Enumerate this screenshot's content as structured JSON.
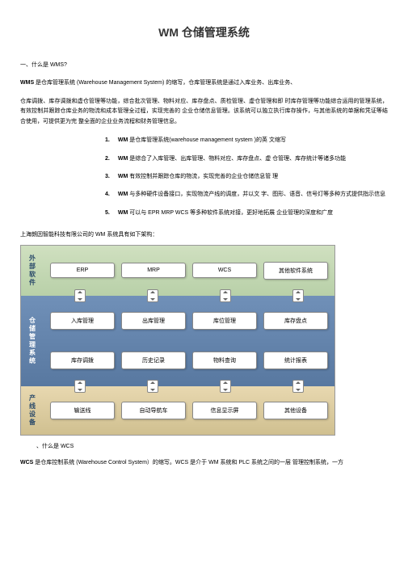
{
  "title": "WM 仓储管理系统",
  "section1": {
    "header": "一、什么是 WMS?",
    "p1_prefix": "WMS",
    "p1_text": " 是仓库管理系统 (Warehouse Management System) 的缩写，仓库管理系统是通过入库业务、出库业务、",
    "p2": "仓库调拨、库存调拨和虚仓管理等功能，综合批次管理、物料对应、库存盘点、质检管理、虚仓管理和即 时库存管理等功能综合运用的管理系统，有效控制并跟踪仓库业务的物流和成本管理全过程，实现完善的 企业仓储信息管理。该系统可以独立执行库存操作，与其他系统的单据和凭证等结合使用，可提供更为完 整全面的企业业务流程和财务管理信息。"
  },
  "list": [
    {
      "num": "1.",
      "label_bold": "WM",
      "text": " 是仓库管理系统(warehouse management system )的英 文缩写"
    },
    {
      "num": "2.",
      "label_bold": "WM",
      "text": " 是综合了入库管理、出库管理、物料对应、库存盘点、虚 仓管理、库存统计等诸多功能"
    },
    {
      "num": "3.",
      "label_bold": "WM",
      "text": " 有效控制并跟踪仓库的物流，实现完善的企业仓储信息管 理"
    },
    {
      "num": "4.",
      "label_bold": "WM",
      "text": " 与多种硬件设备接口，实现物流产线的调度，并以文 字、图形、语音、信号灯等多种方式提供指示信息"
    },
    {
      "num": "5.",
      "label_bold": "WM",
      "text": " 可以与 EPR MRP WCS 等多种软件系统对接，更好地拓展 企业管理的深度和广度"
    }
  ],
  "arch_intro": "上海朗因智能科技有限公司的 WM 系统具有如下架构：",
  "diagram": {
    "vlabels": {
      "ext": "外部软件",
      "wm": "仓储管理系统",
      "hw": "产线设备"
    },
    "row_ext": [
      "ERP",
      "MRP",
      "WCS",
      "其他软件系统"
    ],
    "row_wm_1": [
      "入库管理",
      "出库管理",
      "库位管理",
      "库存盘点"
    ],
    "row_wm_2": [
      "库存调拨",
      "历史记录",
      "物料查询",
      "统计报表"
    ],
    "row_hw": [
      "输送线",
      "自动导航车",
      "信息显示屏",
      "其他设备"
    ]
  },
  "section2": {
    "header": "、什么是 WCS",
    "p1_prefix": "WCS",
    "p1_text": " 是仓库控制系统 (Warehouse Control System）的缩写。WCS 是介于 WM 系统和 PLC 系统之间的一层 管理控制系统，一方"
  }
}
